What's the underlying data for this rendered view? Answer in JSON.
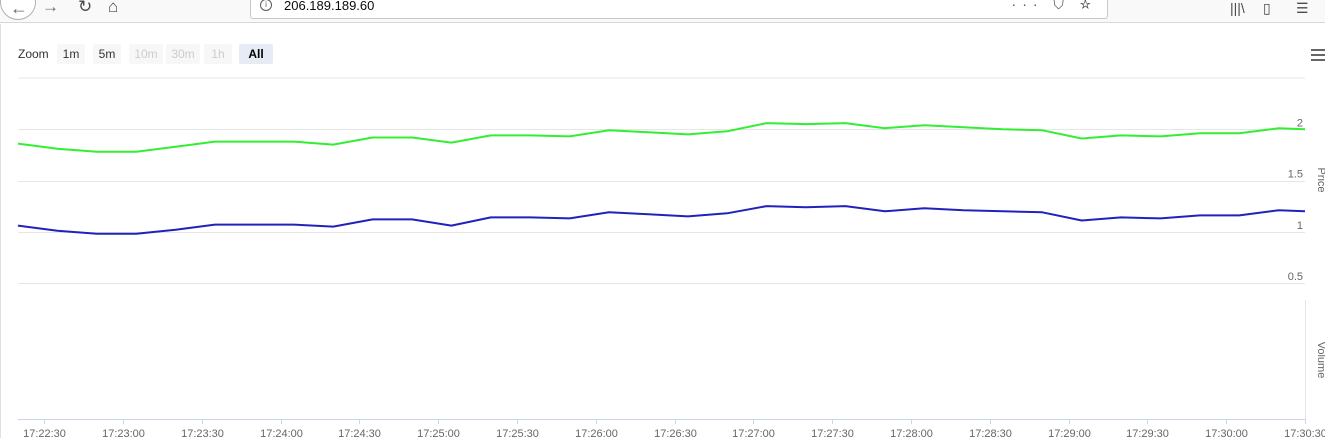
{
  "browser": {
    "url": "206.189.189.60",
    "info_glyph": "i",
    "back_glyph": "←",
    "forward_glyph": "→",
    "reload_glyph": "↻",
    "home_glyph": "⌂",
    "actions_glyph": "··· ⛉ ☆",
    "library_glyph": "|||\\",
    "reader_glyph": "▯",
    "sidebar_glyph": "☰"
  },
  "zoom": {
    "label": "Zoom",
    "buttons": [
      {
        "label": "1m",
        "state": "enabled"
      },
      {
        "label": "5m",
        "state": "enabled"
      },
      {
        "label": "10m",
        "state": "disabled"
      },
      {
        "label": "30m",
        "state": "disabled"
      },
      {
        "label": "1h",
        "state": "disabled"
      },
      {
        "label": "All",
        "state": "active"
      }
    ]
  },
  "chart_data": {
    "type": "line",
    "x": [
      "17:22:20",
      "17:22:35",
      "17:22:50",
      "17:23:05",
      "17:23:20",
      "17:23:35",
      "17:23:50",
      "17:24:05",
      "17:24:20",
      "17:24:35",
      "17:24:50",
      "17:25:05",
      "17:25:20",
      "17:25:35",
      "17:25:50",
      "17:26:05",
      "17:26:20",
      "17:26:35",
      "17:26:50",
      "17:27:05",
      "17:27:20",
      "17:27:35",
      "17:27:50",
      "17:28:05",
      "17:28:20",
      "17:28:35",
      "17:28:50",
      "17:29:05",
      "17:29:20",
      "17:29:35",
      "17:29:50",
      "17:30:05",
      "17:30:20",
      "17:30:30"
    ],
    "series": [
      {
        "color": "#33ee33",
        "values": [
          1.86,
          1.81,
          1.78,
          1.78,
          1.83,
          1.88,
          1.88,
          1.88,
          1.85,
          1.92,
          1.92,
          1.87,
          1.94,
          1.94,
          1.93,
          1.99,
          1.97,
          1.95,
          1.98,
          2.06,
          2.05,
          2.06,
          2.01,
          2.04,
          2.02,
          2.0,
          1.99,
          1.91,
          1.94,
          1.93,
          1.96,
          1.96,
          2.01,
          2.0
        ]
      },
      {
        "color": "#2222bb",
        "values": [
          1.06,
          1.01,
          0.98,
          0.98,
          1.02,
          1.07,
          1.07,
          1.07,
          1.05,
          1.12,
          1.12,
          1.06,
          1.14,
          1.14,
          1.13,
          1.19,
          1.17,
          1.15,
          1.18,
          1.25,
          1.24,
          1.25,
          1.2,
          1.23,
          1.21,
          1.2,
          1.19,
          1.11,
          1.14,
          1.13,
          1.16,
          1.16,
          1.21,
          1.2
        ]
      }
    ],
    "price_axis": {
      "title": "Price",
      "ylim": [
        0.5,
        2.5
      ],
      "ticks": [
        "0.5",
        "1",
        "1.5",
        "2"
      ]
    },
    "volume_axis": {
      "title": "Volume"
    },
    "xticks": [
      "17:22:30",
      "17:23:00",
      "17:23:30",
      "17:24:00",
      "17:24:30",
      "17:25:00",
      "17:25:30",
      "17:26:00",
      "17:26:30",
      "17:27:00",
      "17:27:30",
      "17:28:00",
      "17:28:30",
      "17:29:00",
      "17:29:30",
      "17:30:00",
      "17:30:30"
    ],
    "grid": true
  }
}
